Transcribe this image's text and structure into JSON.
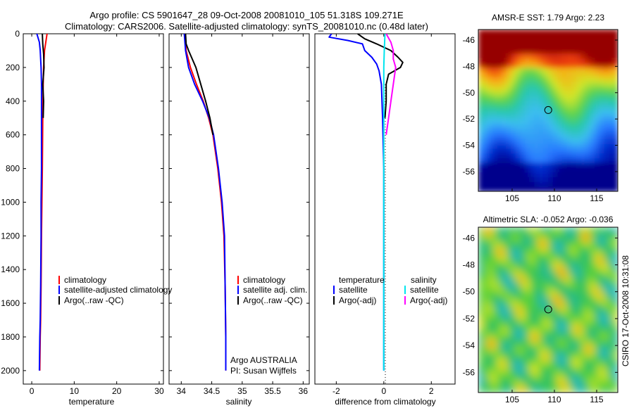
{
  "header": {
    "title_line1": "Argo profile: CS 5901647_28 09-Oct-2008 20081010_105 51.318S 109.271E",
    "title_line2": "Climatology: CARS2006. Satellite-adjusted climatology: synTS_20081010.nc (0.48d later)"
  },
  "colors": {
    "climatology": "#ff0000",
    "satellite": "#0000ff",
    "argo": "#000000",
    "sal_satellite": "#00e5ee",
    "sal_argo": "#ff00ff"
  },
  "chart_data": [
    {
      "id": "temperature-profile",
      "type": "line",
      "xlabel": "temperature",
      "ylabel": "",
      "xlim": [
        -2,
        31
      ],
      "ylim": [
        2080,
        0
      ],
      "x_ticks": [
        0,
        10,
        20,
        30
      ],
      "y_ticks": [
        0,
        200,
        400,
        600,
        800,
        1000,
        1200,
        1400,
        1600,
        1800,
        2000
      ],
      "series": [
        {
          "name": "climatology",
          "color_key": "climatology",
          "z": [
            0,
            50,
            100,
            200,
            300,
            500,
            800,
            1000,
            1200,
            1500,
            1700,
            1800,
            2000
          ],
          "x": [
            3.6,
            3.3,
            3.0,
            2.8,
            2.7,
            2.6,
            2.5,
            2.4,
            2.3,
            2.2,
            2.1,
            2.0,
            1.9
          ]
        },
        {
          "name": "satellite-adjusted climatology",
          "color_key": "satellite",
          "z": [
            0,
            50,
            100,
            200,
            300,
            500,
            800,
            1000,
            1200,
            1500,
            1700,
            1800,
            2000
          ],
          "x": [
            1.2,
            1.8,
            2.0,
            2.2,
            2.3,
            2.3,
            2.3,
            2.2,
            2.2,
            2.1,
            2.0,
            1.9,
            1.8
          ]
        },
        {
          "name": "Argo(..raw -QC)",
          "color_key": "argo",
          "z": [
            0,
            60,
            120,
            200,
            300,
            400,
            500
          ],
          "x": [
            2.5,
            2.6,
            2.8,
            2.9,
            2.6,
            2.8,
            2.7
          ]
        }
      ],
      "legend": [
        "climatology",
        "satellite-adjusted climatology",
        "Argo(..raw -QC)"
      ]
    },
    {
      "id": "salinity-profile",
      "type": "line",
      "xlabel": "salinity",
      "ylabel": "",
      "xlim": [
        33.8,
        36.1
      ],
      "ylim": [
        2080,
        0
      ],
      "x_ticks": [
        34,
        34.5,
        35,
        35.5,
        36
      ],
      "y_ticks": [
        0,
        200,
        400,
        600,
        800,
        1000,
        1200,
        1400,
        1600,
        1800,
        2000
      ],
      "series": [
        {
          "name": "climatology",
          "color_key": "climatology",
          "z": [
            0,
            100,
            200,
            300,
            400,
            500,
            600,
            800,
            1000,
            1200,
            1500,
            1800,
            2000
          ],
          "x": [
            34.06,
            34.08,
            34.15,
            34.25,
            34.36,
            34.45,
            34.52,
            34.6,
            34.66,
            34.7,
            34.72,
            34.73,
            34.73
          ]
        },
        {
          "name": "satellite adj. clim.",
          "color_key": "satellite",
          "z": [
            0,
            100,
            200,
            300,
            400,
            500,
            600,
            800,
            1000,
            1200,
            1500,
            1800,
            2000
          ],
          "x": [
            34.05,
            34.07,
            34.12,
            34.22,
            34.35,
            34.46,
            34.53,
            34.61,
            34.67,
            34.71,
            34.72,
            34.73,
            34.73
          ]
        },
        {
          "name": "Argo(..raw -QC)",
          "color_key": "argo",
          "z": [
            0,
            60,
            100,
            150,
            200,
            300,
            400,
            500,
            600
          ],
          "x": [
            34.07,
            34.08,
            34.12,
            34.18,
            34.24,
            34.32,
            34.4,
            34.47,
            34.52
          ]
        }
      ],
      "legend": [
        "climatology",
        "satellite adj. clim.",
        "Argo(..raw -QC)"
      ],
      "annotation": [
        "Argo AUSTRALIA",
        "PI: Susan Wijffels"
      ]
    },
    {
      "id": "difference-profile",
      "type": "line",
      "xlabel": "difference from climatology",
      "ylabel": "",
      "xlim": [
        -2.9,
        3.0
      ],
      "ylim": [
        2080,
        0
      ],
      "x_ticks": [
        -2,
        0,
        2
      ],
      "series": [
        {
          "name": "temperature satellite",
          "color_key": "satellite",
          "z": [
            0,
            20,
            40,
            60,
            100,
            140,
            180,
            220,
            300,
            500,
            800,
            1000,
            2000
          ],
          "x": [
            -2.2,
            -2.3,
            -1.5,
            -0.9,
            -0.8,
            -0.5,
            -0.3,
            -0.2,
            -0.1,
            -0.05,
            0,
            0,
            0
          ]
        },
        {
          "name": "temperature Argo(-adj)",
          "color_key": "argo",
          "z": [
            0,
            30,
            60,
            100,
            140,
            170,
            200,
            240,
            300,
            400,
            500
          ],
          "x": [
            -1.1,
            -0.8,
            -0.3,
            0.3,
            0.6,
            0.8,
            0.7,
            0.2,
            0.1,
            0.1,
            0.05
          ]
        },
        {
          "name": "salinity satellite",
          "color_key": "sal_satellite",
          "z": [
            0,
            100,
            200,
            400,
            600,
            1000,
            1500,
            2000
          ],
          "x": [
            0.05,
            0.02,
            0.0,
            0.0,
            0.0,
            0.0,
            0.0,
            0.0
          ]
        },
        {
          "name": "salinity Argo(-adj)",
          "color_key": "sal_argo",
          "z": [
            0,
            50,
            100,
            150,
            200,
            300,
            400,
            500,
            600
          ],
          "x": [
            0.1,
            0.3,
            0.4,
            0.4,
            0.5,
            0.4,
            0.3,
            0.2,
            0.1
          ]
        }
      ],
      "legend_headers": [
        "temperature",
        "salinity"
      ],
      "legend": [
        "satellite",
        "Argo(-adj)",
        "satellite",
        "Argo(-adj)"
      ]
    },
    {
      "id": "sst-map",
      "type": "heatmap",
      "title": "AMSR-E SST: 1.79 Argo: 2.23",
      "xlim": [
        101,
        117.5
      ],
      "ylim": [
        -57.5,
        -45.2
      ],
      "x_ticks": [
        105,
        110,
        115
      ],
      "y_ticks": [
        -46,
        -48,
        -50,
        -52,
        -54,
        -56
      ],
      "marker": {
        "lon": 109.271,
        "lat": -51.318
      }
    },
    {
      "id": "sla-map",
      "type": "heatmap",
      "title": "Altimetric SLA: -0.052 Argo: -0.036",
      "xlim": [
        101,
        117.5
      ],
      "ylim": [
        -57.5,
        -45.2
      ],
      "x_ticks": [
        105,
        110,
        115
      ],
      "y_ticks": [
        -46,
        -48,
        -50,
        -52,
        -54,
        -56
      ],
      "marker": {
        "lon": 109.271,
        "lat": -51.318
      },
      "side_label": "CSIRO 17-Oct-2008 10:31:08"
    }
  ]
}
